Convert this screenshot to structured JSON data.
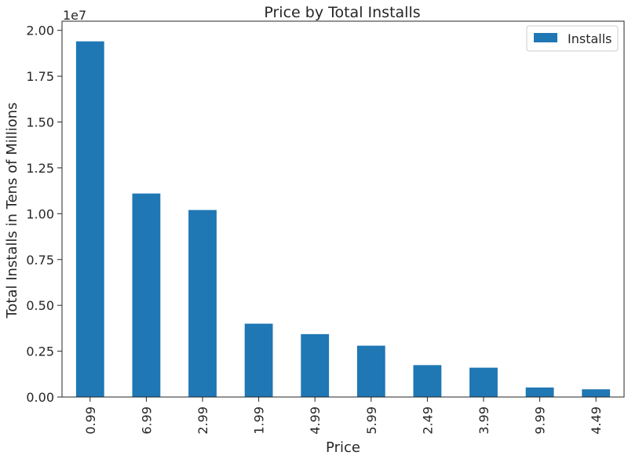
{
  "chart_data": {
    "type": "bar",
    "title": "Price by Total Installs",
    "xlabel": "Price",
    "ylabel": "Total Installs in Tens of Millions",
    "offset_text": "1e7",
    "categories": [
      "0.99",
      "6.99",
      "2.99",
      "1.99",
      "4.99",
      "5.99",
      "2.49",
      "3.99",
      "9.99",
      "4.49"
    ],
    "series": [
      {
        "name": "Installs",
        "color": "#1f77b4",
        "values": [
          19400000,
          11100000,
          10200000,
          4000000,
          3430000,
          2800000,
          1740000,
          1600000,
          520000,
          420000
        ]
      }
    ],
    "ylim": [
      0,
      20500000
    ],
    "yticks": [
      0,
      2500000,
      5000000,
      7500000,
      10000000,
      12500000,
      15000000,
      17500000,
      20000000
    ],
    "ytick_labels": [
      "0.00",
      "0.25",
      "0.50",
      "0.75",
      "1.00",
      "1.25",
      "1.50",
      "1.75",
      "2.00"
    ],
    "legend_position": "top-right",
    "grid": false
  }
}
